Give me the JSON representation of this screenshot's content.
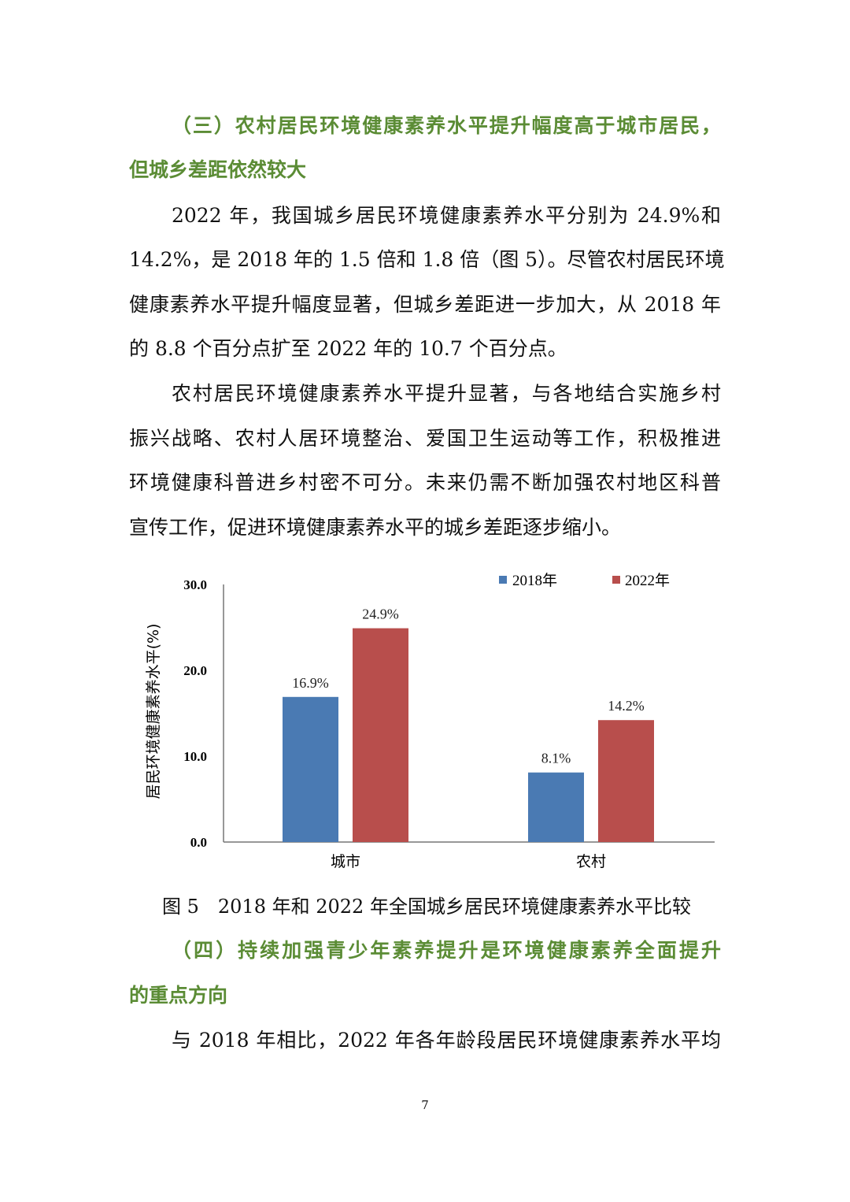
{
  "heading3": [
    "（三）农村居民环境健康素养水平提升幅度高于城市居民，",
    "但城乡差距依然较大"
  ],
  "para1": [
    "2022 年，我国城乡居民环境健康素养水平分别为 24.9%和",
    "14.2%，是 2018 年的 1.5 倍和 1.8 倍（图 5）。尽管农村居民环境",
    "健康素养水平提升幅度显著，但城乡差距进一步加大，从 2018 年",
    "的 8.8 个百分点扩至 2022 年的 10.7 个百分点。"
  ],
  "para2": [
    "农村居民环境健康素养水平提升显著，与各地结合实施乡村",
    "振兴战略、农村人居环境整治、爱国卫生运动等工作，积极推进",
    "环境健康科普进乡村密不可分。未来仍需不断加强农村地区科普",
    "宣传工作，促进环境健康素养水平的城乡差距逐步缩小。"
  ],
  "chart_data": {
    "type": "bar",
    "categories": [
      "城市",
      "农村"
    ],
    "series": [
      {
        "name": "2018年",
        "values": [
          16.9,
          8.1
        ],
        "labels": [
          "16.9%",
          "8.1%"
        ],
        "color": "#4a7ab3"
      },
      {
        "name": "2022年",
        "values": [
          24.9,
          14.2
        ],
        "labels": [
          "24.9%",
          "14.2%"
        ],
        "color": "#b84e4c"
      }
    ],
    "ylabel": "居民环境健康素养水平(%)",
    "ylim": [
      0,
      30
    ],
    "yticks": [
      "0.0",
      "10.0",
      "20.0",
      "30.0"
    ],
    "grid": false,
    "legend": "top-right"
  },
  "caption": "图 5　2018 年和 2022 年全国城乡居民环境健康素养水平比较",
  "heading4": [
    "（四）持续加强青少年素养提升是环境健康素养全面提升",
    "的重点方向"
  ],
  "para3": [
    "与 2018 年相比，2022 年各年龄段居民环境健康素养水平均"
  ],
  "page_number": "7"
}
